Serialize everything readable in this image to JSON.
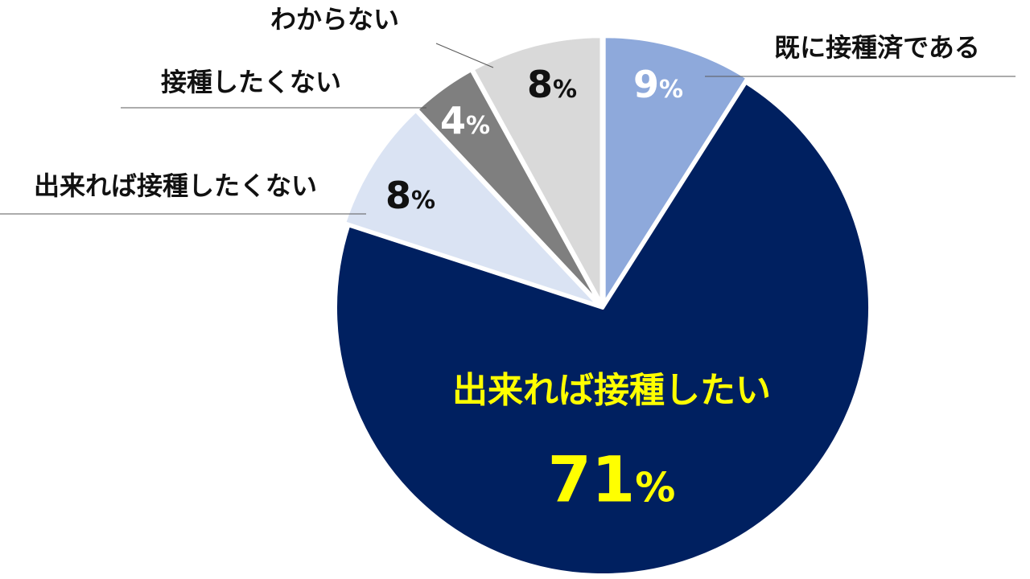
{
  "chart_data": {
    "type": "pie",
    "unit": "%",
    "slices": [
      {
        "category": "既に接種済である",
        "value": 9,
        "color": "#8EA9DB",
        "label_color": "#ffffff"
      },
      {
        "category": "出来れば接種したい",
        "value": 71,
        "color": "#002060",
        "label_color": "#FFFF00"
      },
      {
        "category": "出来れば接種したくない",
        "value": 8,
        "color": "#DAE3F3",
        "label_color": "#111111"
      },
      {
        "category": "接種したくない",
        "value": 4,
        "color": "#7F7F7F",
        "label_color": "#ffffff"
      },
      {
        "category": "わからない",
        "value": 8,
        "color": "#D9D9D9",
        "label_color": "#111111"
      }
    ],
    "start": "12 o'clock",
    "direction": "clockwise",
    "legend": "none"
  }
}
